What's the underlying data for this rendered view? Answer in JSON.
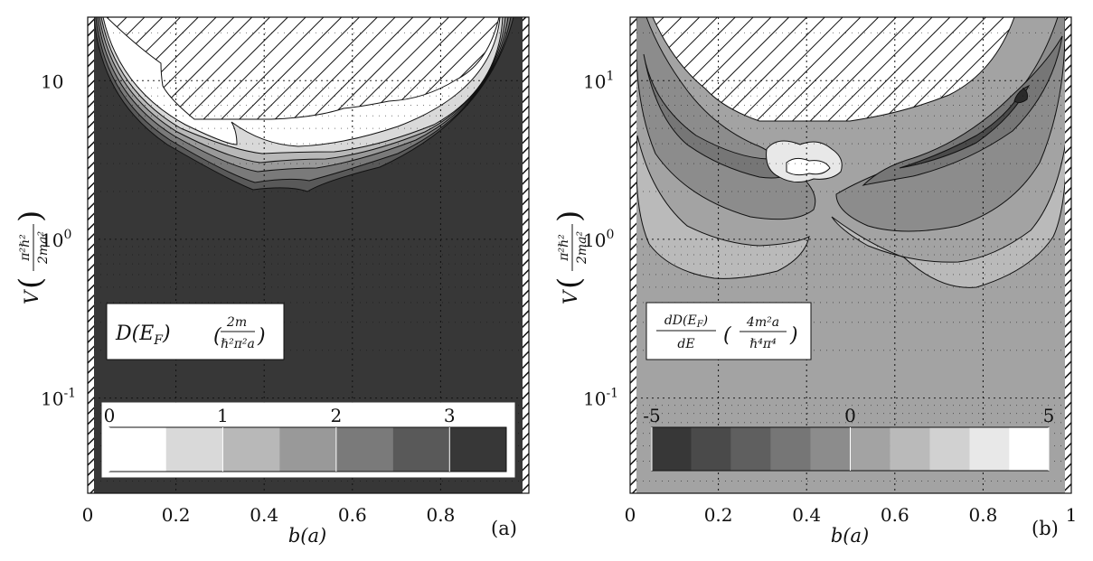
{
  "chart_data": [
    {
      "panel": "(a)",
      "type": "heatmap",
      "xlabel": "b(a)",
      "ylabel": "V (π²ℏ²/2ma²)",
      "xlim": [
        0,
        1
      ],
      "ylim_log10": [
        -1.6,
        1.4
      ],
      "yscale": "log",
      "grid": true,
      "x_ticks": [
        "0",
        "0.2",
        "0.4",
        "0.6",
        "0.8"
      ],
      "y_ticks": [
        {
          "value": 10,
          "base": "10",
          "exp": ""
        },
        {
          "value": 1,
          "base": "10",
          "exp": "0"
        },
        {
          "value": 0.1,
          "base": "10",
          "exp": "-1"
        }
      ],
      "legend_text": "D(E_F) (2m / ℏ²π²a)",
      "colorbar": {
        "tick_labels": [
          "0",
          "1",
          "2",
          "3"
        ],
        "tick_values": [
          0,
          1,
          2,
          3
        ],
        "range": [
          0,
          3.5
        ],
        "levels": [
          "#ffffff",
          "#d9d9d9",
          "#b8b8b8",
          "#999999",
          "#7a7a7a",
          "#595959",
          "#373737"
        ]
      },
      "background_level": "#373737",
      "excluded_region": "hatched"
    },
    {
      "panel": "(b)",
      "type": "heatmap",
      "xlabel": "b(a)",
      "ylabel": "V (π²ℏ²/2ma²)",
      "xlim": [
        0,
        1
      ],
      "ylim_log10": [
        -1.6,
        1.4
      ],
      "yscale": "log",
      "grid": true,
      "x_ticks": [
        "0",
        "0.2",
        "0.4",
        "0.6",
        "0.8",
        "1"
      ],
      "y_ticks": [
        {
          "value": 10,
          "base": "10",
          "exp": "1"
        },
        {
          "value": 1,
          "base": "10",
          "exp": "0"
        },
        {
          "value": 0.1,
          "base": "10",
          "exp": "-1"
        }
      ],
      "legend_text": "dD(E_F)/dE (4m²a / ℏ⁴π⁴)",
      "colorbar": {
        "tick_labels": [
          "-5",
          "0",
          "5"
        ],
        "tick_values": [
          -5,
          0,
          5
        ],
        "range": [
          -5,
          5
        ],
        "levels": [
          "#373737",
          "#4a4a4a",
          "#5f5f5f",
          "#767676",
          "#8c8c8c",
          "#a3a3a3",
          "#bababa",
          "#d1d1d1",
          "#e8e8e8",
          "#ffffff"
        ]
      },
      "background_level": "#a3a3a3",
      "excluded_region": "hatched"
    }
  ],
  "panels": {
    "a": {
      "label": "(a)",
      "xlabel": "b(a)",
      "legend_main": "D(E",
      "legend_sub": "F",
      "legend_paren": ")",
      "legend_num": "2m",
      "legend_den": "ℏ²π²a",
      "ylabel_v": "V",
      "ylabel_num": "π²ℏ²",
      "ylabel_den": "2ma²"
    },
    "b": {
      "label": "(b)",
      "xlabel": "b(a)",
      "legend_num1": "dD(E",
      "legend_sub1": "F",
      "legend_num1b": ")",
      "legend_den1": "dE",
      "legend_num2": "4m²a",
      "legend_den2": "ℏ⁴π⁴",
      "ylabel_v": "V",
      "ylabel_num": "π²ℏ²",
      "ylabel_den": "2ma²"
    }
  }
}
